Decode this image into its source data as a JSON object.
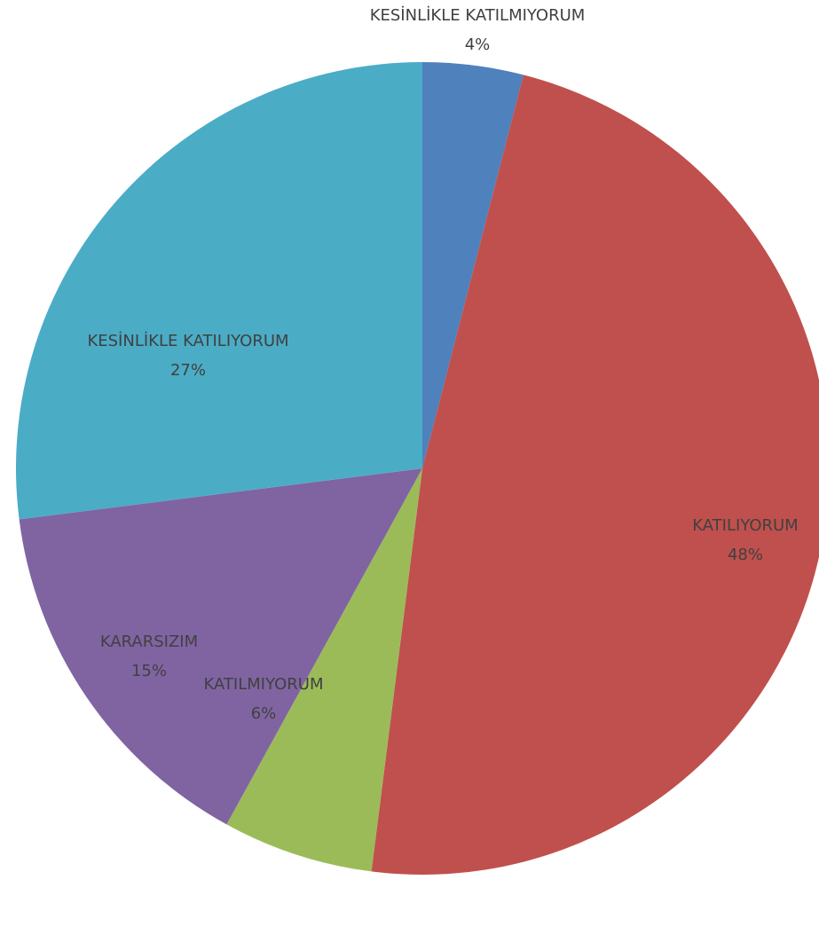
{
  "chart_data": {
    "type": "pie",
    "categories": [
      "KESİNLİKLE KATILMIYORUM",
      "KATILIYORUM",
      "KATILMIYORUM",
      "KARARSIZIM",
      "KESİNLİKLE KATILIYORUM"
    ],
    "values": [
      4,
      48,
      6,
      15,
      27
    ],
    "value_labels": [
      "4%",
      "48%",
      "6%",
      "15%",
      "27%"
    ],
    "colors": [
      "#4f81bd",
      "#c0504d",
      "#9bbb59",
      "#8064a2",
      "#4bacc6"
    ]
  }
}
